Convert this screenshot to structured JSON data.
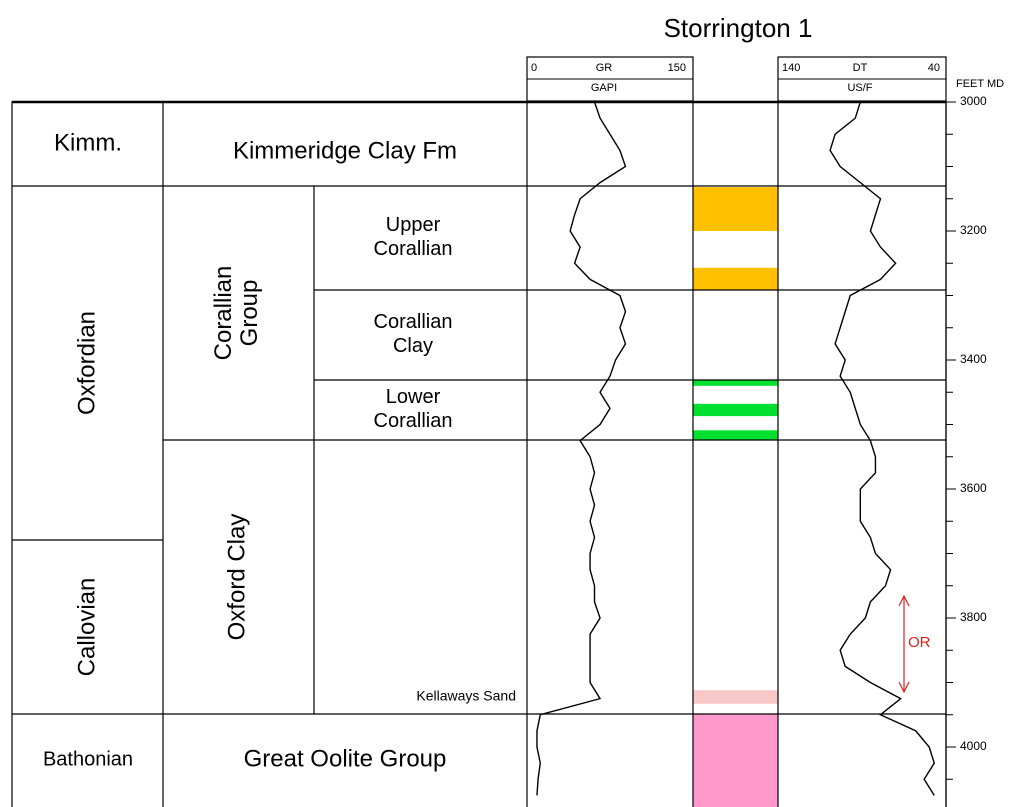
{
  "title": "Storrington 1",
  "tracks": {
    "gr": {
      "name": "GR",
      "unit": "GAPI",
      "lim": [
        0,
        150
      ]
    },
    "dt": {
      "name": "DT",
      "unit": "US/F",
      "lim": [
        140,
        40
      ]
    }
  },
  "depth_axis": {
    "label": "FEET MD",
    "lim": [
      3000,
      4000
    ],
    "ticks": [
      3000,
      3200,
      3400,
      3600,
      3800,
      4000
    ],
    "minor_ticks": [
      3050,
      3100,
      3150,
      3250,
      3300,
      3350,
      3450,
      3500,
      3550,
      3650,
      3700,
      3750,
      3850,
      3900,
      3950,
      4050
    ]
  },
  "stages": [
    "Kimm.",
    "Oxfordian",
    "Callovian",
    "Bathonian"
  ],
  "groups": [
    "Kimmeridge Clay Fm",
    "Corallian Group",
    "Oxford Clay",
    "Great Oolite Group"
  ],
  "members": [
    "Upper Corallian",
    "Corallian Clay",
    "Lower Corallian",
    "Kellaways Sand"
  ],
  "annotation": "OR",
  "lithology": [
    {
      "top": 3132,
      "base": 3200,
      "color": "#ffc000"
    },
    {
      "top": 3257,
      "base": 3291,
      "color": "#ffc000"
    },
    {
      "top": 3431,
      "base": 3440,
      "color": "#00e030"
    },
    {
      "top": 3468,
      "base": 3487,
      "color": "#00e030"
    },
    {
      "top": 3509,
      "base": 3524,
      "color": "#00e030"
    },
    {
      "top": 3912,
      "base": 3933,
      "color": "#f8c8c8"
    },
    {
      "top": 3949,
      "base": 4093,
      "color": "#ff99cc"
    }
  ],
  "logs": {
    "depth": [
      3000,
      3025,
      3050,
      3075,
      3100,
      3125,
      3150,
      3175,
      3200,
      3225,
      3250,
      3275,
      3300,
      3325,
      3350,
      3375,
      3400,
      3425,
      3450,
      3475,
      3500,
      3525,
      3550,
      3575,
      3600,
      3625,
      3650,
      3675,
      3700,
      3725,
      3750,
      3775,
      3800,
      3825,
      3850,
      3875,
      3900,
      3925,
      3950,
      3975,
      4000,
      4025,
      4050,
      4075
    ],
    "gr": [
      61,
      66,
      75,
      84,
      89,
      66,
      48,
      43,
      39,
      48,
      43,
      57,
      84,
      89,
      84,
      89,
      80,
      75,
      66,
      75,
      66,
      48,
      57,
      61,
      57,
      61,
      57,
      61,
      57,
      57,
      61,
      61,
      66,
      57,
      57,
      57,
      57,
      66,
      12,
      9,
      9,
      12,
      10,
      9
    ],
    "dt": [
      91,
      94,
      106,
      109,
      103,
      91,
      79,
      82,
      85,
      79,
      70,
      79,
      97,
      100,
      103,
      106,
      100,
      103,
      97,
      94,
      91,
      85,
      82,
      82,
      91,
      91,
      91,
      85,
      82,
      73,
      76,
      85,
      88,
      97,
      103,
      100,
      85,
      67,
      79,
      58,
      50,
      47,
      53,
      47
    ]
  }
}
